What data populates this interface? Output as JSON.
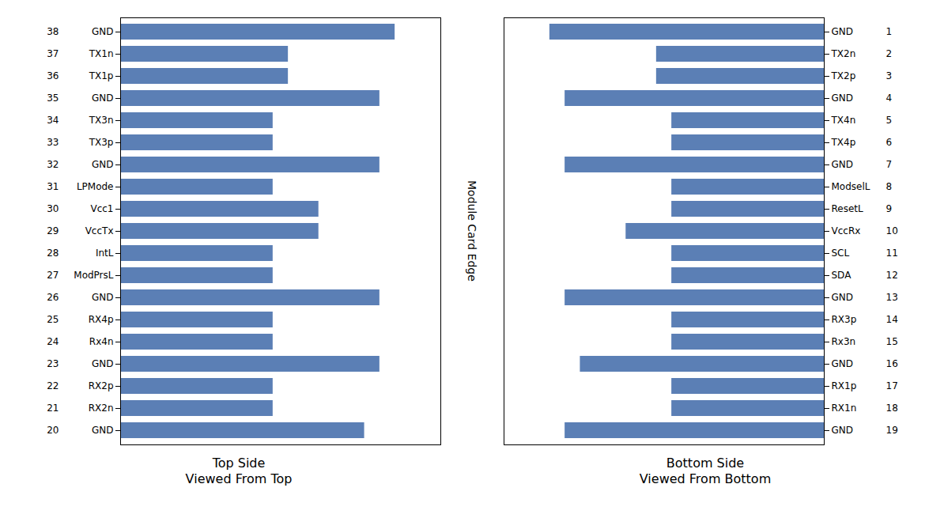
{
  "chart_data": [
    {
      "type": "bar",
      "orientation": "horizontal",
      "title": "Top Side\nViewed From Top",
      "categories": [
        "GND",
        "TX1n",
        "TX1p",
        "GND",
        "TX3n",
        "TX3p",
        "GND",
        "LPMode",
        "Vcc1",
        "VccTx",
        "IntL",
        "ModPrsL",
        "GND",
        "RX4p",
        "Rx4n",
        "GND",
        "RX2p",
        "RX2n",
        "GND"
      ],
      "pin_numbers": [
        38,
        37,
        36,
        35,
        34,
        33,
        32,
        31,
        30,
        29,
        28,
        27,
        26,
        25,
        24,
        23,
        22,
        21,
        20
      ],
      "values": [
        9,
        5.5,
        5.5,
        8.5,
        5,
        5,
        8.5,
        5,
        6.5,
        6.5,
        5,
        5,
        8.5,
        5,
        5,
        8.5,
        5,
        5,
        8
      ],
      "color": "#5b7fb5",
      "xlim": [
        0,
        10.5
      ],
      "tick_labels": "y",
      "annotation": "Module Card Edge"
    },
    {
      "type": "bar",
      "orientation": "horizontal",
      "title": "Bottom Side\nViewed From Bottom",
      "categories": [
        "GND",
        "TX2n",
        "TX2p",
        "GND",
        "TX4n",
        "TX4p",
        "GND",
        "ModselL",
        "ResetL",
        "VccRx",
        "SCL",
        "SDA",
        "GND",
        "RX3p",
        "Rx3n",
        "GND",
        "RX1p",
        "RX1n",
        "GND"
      ],
      "pin_numbers": [
        1,
        2,
        3,
        4,
        5,
        6,
        7,
        8,
        9,
        10,
        11,
        12,
        13,
        14,
        15,
        16,
        17,
        18,
        19
      ],
      "values": [
        9,
        5.5,
        5.5,
        8.5,
        5,
        5,
        8.5,
        5,
        5,
        6.5,
        5,
        5,
        8.5,
        5,
        5,
        8,
        5,
        5,
        8.5
      ],
      "color": "#5b7fb5",
      "xlim": [
        10.5,
        0
      ],
      "tick_labels": "y"
    }
  ]
}
